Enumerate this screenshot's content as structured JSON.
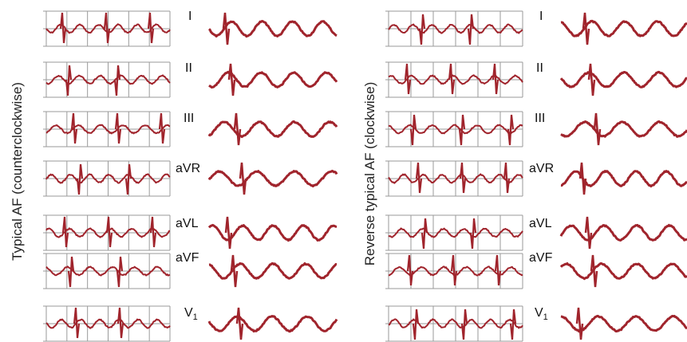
{
  "colors": {
    "trace": "#a0242c",
    "grid": "#9a9a9a"
  },
  "panels": [
    {
      "title": "Typical AF (counterclockwise)",
      "leads": [
        {
          "name": "I",
          "strip_a": "flutter_a",
          "strip_b": "flutter_b"
        },
        {
          "name": "II",
          "strip_a": "flutter_a",
          "strip_b": "flutter_b"
        },
        {
          "name": "III",
          "strip_a": "flutter_a",
          "strip_b": "flutter_b"
        },
        {
          "name": "aVR",
          "strip_a": "flutter_a",
          "strip_b": "flutter_b"
        },
        {
          "name": "aVL",
          "strip_a": "flutter_a",
          "strip_b": "flutter_b"
        },
        {
          "name": "aVF",
          "strip_a": "flutter_a",
          "strip_b": "flutter_b"
        },
        {
          "name": "V",
          "sub": "1",
          "strip_a": "flutter_a",
          "strip_b": "flutter_b"
        }
      ]
    },
    {
      "title": "Reverse typical AF (clockwise)",
      "leads": [
        {
          "name": "I",
          "strip_a": "flutter_a",
          "strip_b": "flutter_b"
        },
        {
          "name": "II",
          "strip_a": "flutter_a",
          "strip_b": "flutter_b"
        },
        {
          "name": "III",
          "strip_a": "flutter_a",
          "strip_b": "flutter_b"
        },
        {
          "name": "aVR",
          "strip_a": "flutter_a",
          "strip_b": "flutter_b"
        },
        {
          "name": "aVL",
          "strip_a": "flutter_a",
          "strip_b": "flutter_b"
        },
        {
          "name": "aVF",
          "strip_a": "flutter_a",
          "strip_b": "flutter_b"
        },
        {
          "name": "V",
          "sub": "1",
          "strip_a": "flutter_a",
          "strip_b": "flutter_b"
        }
      ]
    }
  ]
}
